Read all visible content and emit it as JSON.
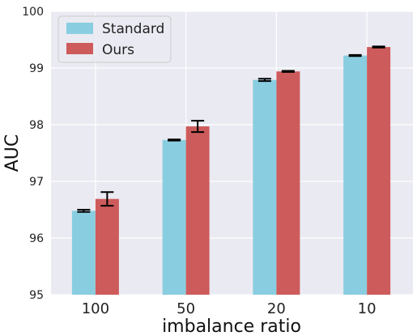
{
  "chart_data": {
    "type": "bar",
    "categories": [
      "100",
      "50",
      "20",
      "10"
    ],
    "series": [
      {
        "name": "Standard",
        "color": "#89CEE0",
        "values": [
          96.48,
          97.73,
          98.79,
          99.22
        ],
        "errors": [
          0.02,
          0.01,
          0.02,
          0.01
        ]
      },
      {
        "name": "Ours",
        "color": "#CD5B5B",
        "values": [
          96.69,
          97.97,
          98.94,
          99.37
        ],
        "errors": [
          0.12,
          0.1,
          0.01,
          0.01
        ]
      }
    ],
    "xlabel": "imbalance ratio",
    "ylabel": "AUC",
    "ylim": [
      95,
      100
    ],
    "yticks": [
      "95",
      "96",
      "97",
      "98",
      "99",
      "100"
    ],
    "grid": true,
    "legend_position": "top-left",
    "background_color": "#EAEAF2",
    "error_bar_color": "#000000"
  }
}
